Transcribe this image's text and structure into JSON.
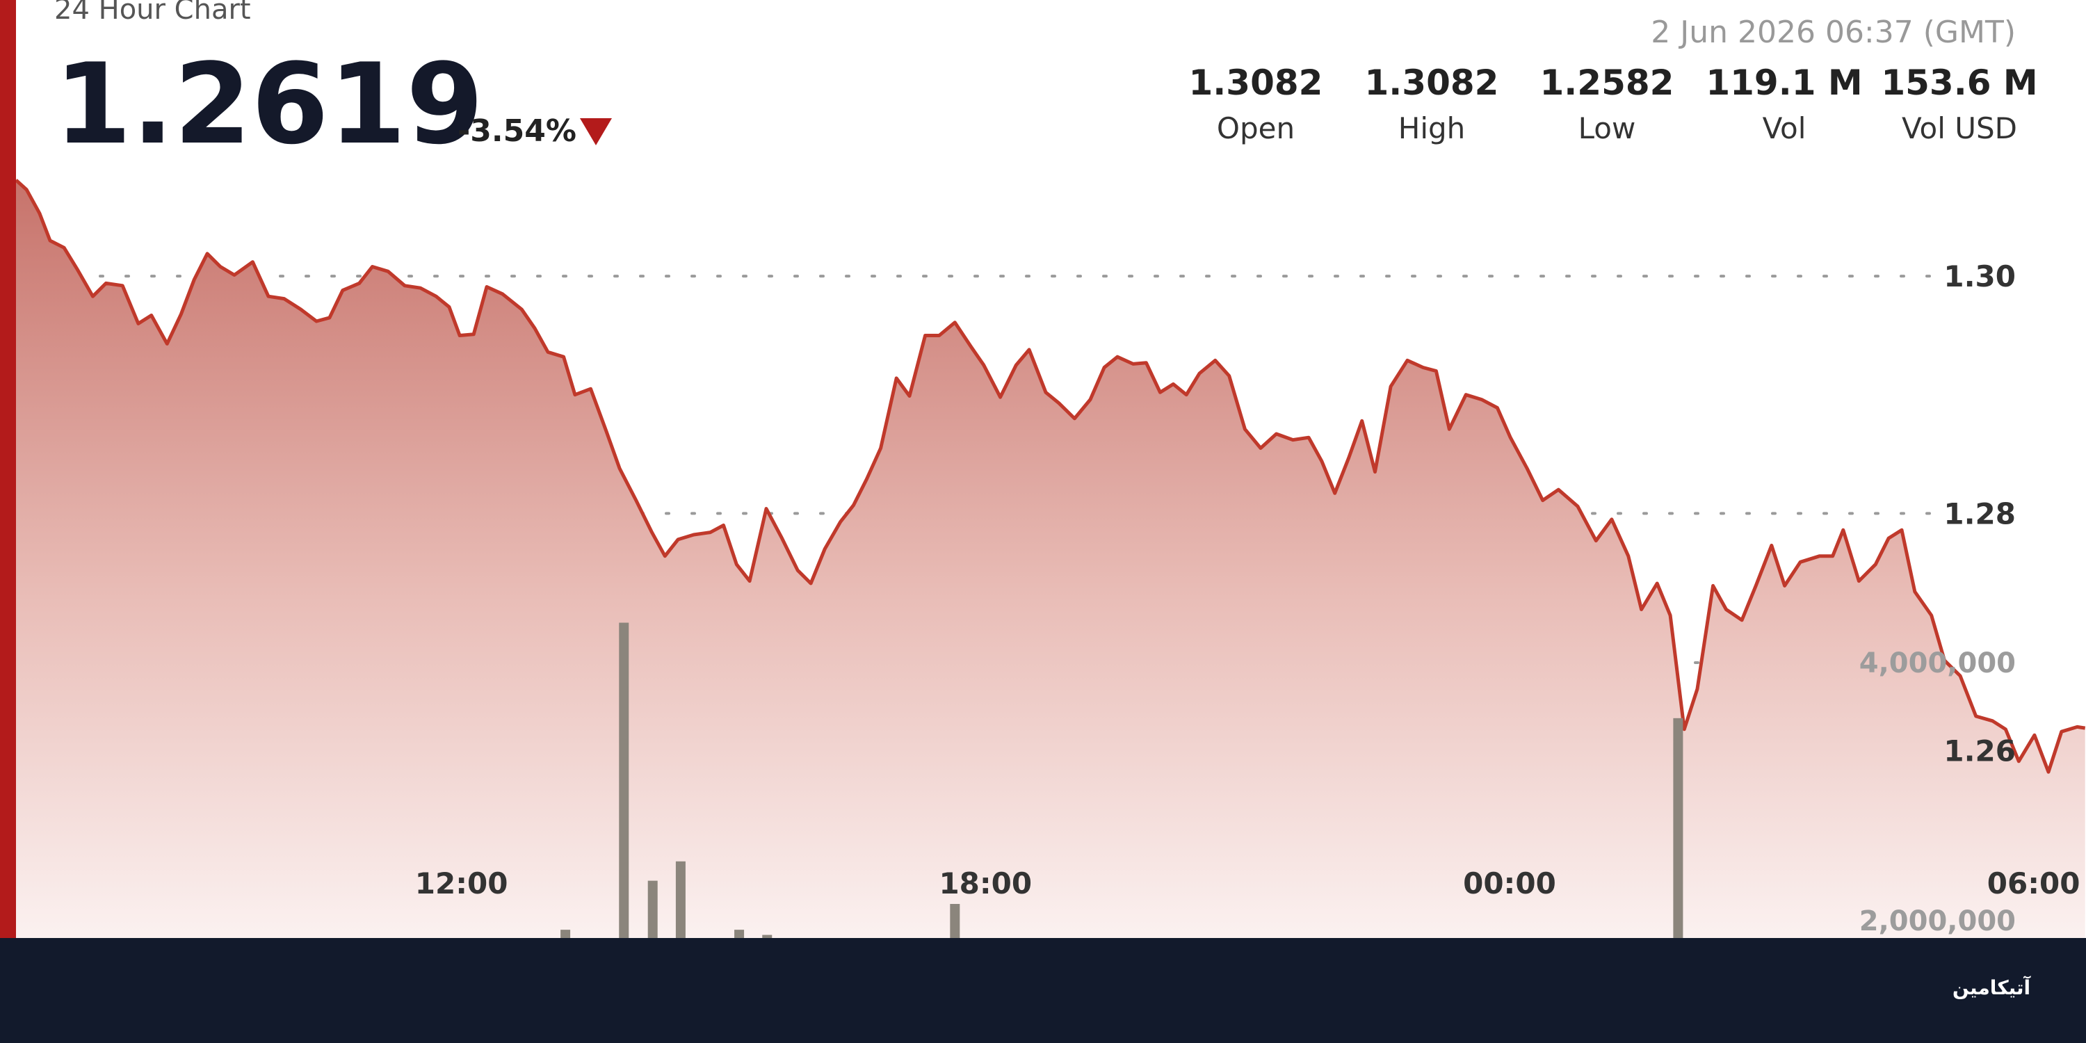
{
  "header": {
    "price": "1.2619",
    "change": "-3.54%",
    "timestamp": "2 Jun 2026 06:37 (GMT)",
    "stats": [
      {
        "value": "1.3082",
        "label": "Open"
      },
      {
        "value": "1.3082",
        "label": "High"
      },
      {
        "value": "1.2582",
        "label": "Low"
      },
      {
        "value": "119.1 M",
        "label": "Vol"
      },
      {
        "value": "153.6 M",
        "label": "Vol USD"
      }
    ]
  },
  "footer": {
    "logo": "آتیکامین"
  },
  "chart_data": {
    "type": "area",
    "title": "24 Hour Chart",
    "grid": true,
    "xlim": [
      6.9,
      30.6
    ],
    "xticks": [
      {
        "value": 12,
        "label": "12:00"
      },
      {
        "value": 18,
        "label": "18:00"
      },
      {
        "value": 24,
        "label": "00:00"
      },
      {
        "value": 30,
        "label": "06:00"
      }
    ],
    "ylim": [
      1.2442,
      1.3098
    ],
    "yticks": [
      {
        "value": 1.26,
        "label": "1.26"
      },
      {
        "value": 1.28,
        "label": "1.28"
      },
      {
        "value": 1.3,
        "label": "1.30"
      }
    ],
    "y2lim": [
      1866000,
      7897000
    ],
    "y2ticks": [
      {
        "value": 2000000,
        "label": "2,000,000"
      },
      {
        "value": 4000000,
        "label": "4,000,000"
      }
    ],
    "series": [
      {
        "type": "area",
        "color": "#c0392b",
        "x": [
          6.9,
          7.02,
          7.17,
          7.29,
          7.45,
          7.6,
          7.78,
          7.93,
          8.12,
          8.3,
          8.45,
          8.63,
          8.79,
          8.94,
          9.09,
          9.24,
          9.4,
          9.61,
          9.79,
          9.97,
          10.16,
          10.34,
          10.49,
          10.64,
          10.83,
          10.98,
          11.16,
          11.35,
          11.53,
          11.71,
          11.86,
          11.98,
          12.14,
          12.29,
          12.47,
          12.69,
          12.84,
          12.99,
          13.17,
          13.3,
          13.48,
          13.66,
          13.81,
          14,
          14.18,
          14.33,
          14.48,
          14.66,
          14.85,
          15,
          15.15,
          15.3,
          15.49,
          15.67,
          15.85,
          16,
          16.16,
          16.34,
          16.49,
          16.64,
          16.8,
          16.98,
          17.13,
          17.31,
          17.47,
          17.65,
          17.83,
          17.98,
          18.17,
          18.35,
          18.5,
          18.69,
          18.84,
          19.02,
          19.2,
          19.36,
          19.51,
          19.69,
          19.84,
          20,
          20.15,
          20.3,
          20.45,
          20.63,
          20.79,
          20.97,
          21.15,
          21.33,
          21.52,
          21.7,
          21.85,
          22,
          22.16,
          22.31,
          22.46,
          22.64,
          22.83,
          23.01,
          23.16,
          23.31,
          23.5,
          23.68,
          23.86,
          24.01,
          24.2,
          24.38,
          24.56,
          24.78,
          24.99,
          25.17,
          25.36,
          25.51,
          25.69,
          25.84,
          26,
          26.15,
          26.33,
          26.48,
          26.66,
          26.82,
          27,
          27.15,
          27.33,
          27.55,
          27.7,
          27.82,
          28,
          28.19,
          28.34,
          28.49,
          28.64,
          28.83,
          28.98,
          29.16,
          29.34,
          29.53,
          29.68,
          29.83,
          30.01,
          30.17,
          30.32,
          30.5,
          30.59
        ],
        "values": [
          1.3081,
          1.3073,
          1.3053,
          1.303,
          1.3024,
          1.3006,
          1.2983,
          1.2994,
          1.2992,
          1.296,
          1.2967,
          1.2943,
          1.2968,
          1.2997,
          1.3019,
          1.3008,
          1.3001,
          1.3012,
          1.2983,
          1.2981,
          1.2972,
          1.2962,
          1.2965,
          1.2988,
          1.2994,
          1.3008,
          1.3004,
          1.2992,
          1.299,
          1.2983,
          1.2974,
          1.295,
          1.2951,
          1.2991,
          1.2985,
          1.2972,
          1.2956,
          1.2936,
          1.2932,
          1.29,
          1.2905,
          1.2869,
          1.2838,
          1.2811,
          1.2784,
          1.2764,
          1.2778,
          1.2782,
          1.2784,
          1.279,
          1.2757,
          1.2743,
          1.2804,
          1.2779,
          1.2752,
          1.2741,
          1.277,
          1.2793,
          1.2807,
          1.2829,
          1.2855,
          1.2914,
          1.2899,
          1.295,
          1.295,
          1.2961,
          1.2941,
          1.2925,
          1.2898,
          1.2925,
          1.2938,
          1.2902,
          1.2893,
          1.288,
          1.2896,
          1.2923,
          1.2932,
          1.2926,
          1.2927,
          1.2902,
          1.2909,
          1.29,
          1.2918,
          1.2929,
          1.2916,
          1.2871,
          1.2855,
          1.2867,
          1.2862,
          1.2864,
          1.2844,
          1.2817,
          1.2847,
          1.2878,
          1.2835,
          1.2907,
          1.2929,
          1.2923,
          1.292,
          1.2871,
          1.29,
          1.2896,
          1.2889,
          1.2864,
          1.2838,
          1.2811,
          1.282,
          1.2806,
          1.2777,
          1.2795,
          1.2764,
          1.2719,
          1.2741,
          1.2714,
          1.2618,
          1.2652,
          1.2739,
          1.2719,
          1.271,
          1.2739,
          1.2773,
          1.2739,
          1.2759,
          1.2764,
          1.2764,
          1.2786,
          1.2743,
          1.2757,
          1.2779,
          1.2786,
          1.2734,
          1.2714,
          1.2676,
          1.2663,
          1.2629,
          1.2625,
          1.2618,
          1.2591,
          1.2613,
          1.2582,
          1.2616,
          1.262,
          1.2619
        ]
      },
      {
        "type": "bar",
        "axis": "y2",
        "color": "#8b857c",
        "x": [
          13.19,
          13.86,
          14.19,
          14.51,
          15.18,
          15.5,
          17.65,
          25.93
        ],
        "values": [
          1930000,
          4310000,
          2310000,
          2460000,
          1930000,
          1890000,
          2130000,
          3570000
        ]
      }
    ]
  }
}
